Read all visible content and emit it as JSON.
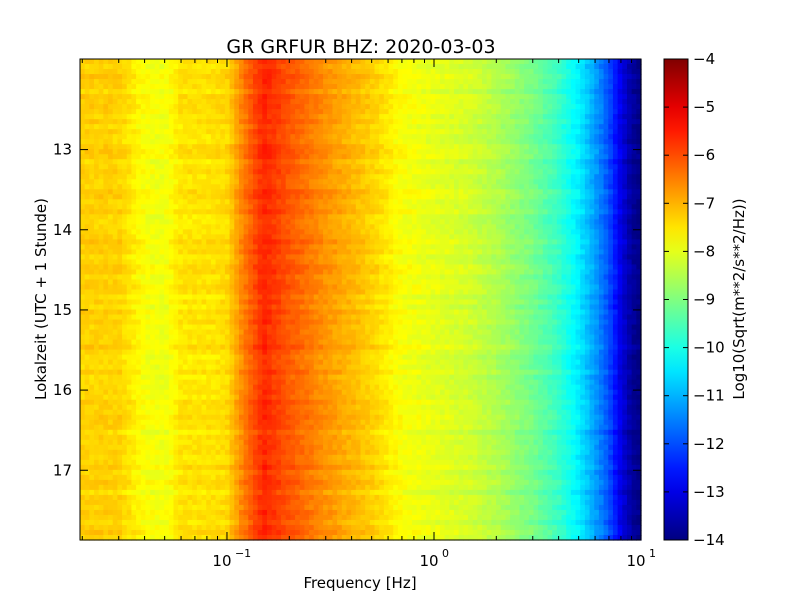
{
  "chart_data": {
    "type": "heatmap",
    "title": "GR GRFUR BHZ: 2020-03-03",
    "xlabel": "Frequency [Hz]",
    "ylabel": "Lokalzeit (UTC + 1 Stunde)",
    "colorbar_label": "Log10(Sqrt(m**2/s**2/Hz))",
    "x_scale": "log",
    "xlim": [
      0.0195,
      10
    ],
    "ylim": [
      17.87,
      11.87
    ],
    "y_inverted": true,
    "x_ticks": [
      {
        "value": 0.1,
        "base": "10",
        "exp": "−1"
      },
      {
        "value": 1,
        "base": "10",
        "exp": "0"
      },
      {
        "value": 10,
        "base": "10",
        "exp": "1"
      }
    ],
    "y_ticks": [
      {
        "value": 13,
        "label": "13"
      },
      {
        "value": 14,
        "label": "14"
      },
      {
        "value": 15,
        "label": "15"
      },
      {
        "value": 16,
        "label": "16"
      },
      {
        "value": 17,
        "label": "17"
      }
    ],
    "colorbar_range": [
      -14,
      -4
    ],
    "colorbar_ticks": [
      {
        "value": -4,
        "label": "−4"
      },
      {
        "value": -5,
        "label": "−5"
      },
      {
        "value": -6,
        "label": "−6"
      },
      {
        "value": -7,
        "label": "−7"
      },
      {
        "value": -8,
        "label": "−8"
      },
      {
        "value": -9,
        "label": "−9"
      },
      {
        "value": -10,
        "label": "−10"
      },
      {
        "value": -11,
        "label": "−11"
      },
      {
        "value": -12,
        "label": "−12"
      },
      {
        "value": -13,
        "label": "−13"
      },
      {
        "value": -14,
        "label": "−14"
      }
    ],
    "colormap": "jet",
    "spectrum_profile": [
      {
        "frequency": 0.02,
        "value": -7.3
      },
      {
        "frequency": 0.03,
        "value": -7.3
      },
      {
        "frequency": 0.04,
        "value": -7.8
      },
      {
        "frequency": 0.05,
        "value": -7.9
      },
      {
        "frequency": 0.06,
        "value": -7.5
      },
      {
        "frequency": 0.08,
        "value": -7.5
      },
      {
        "frequency": 0.1,
        "value": -7.4
      },
      {
        "frequency": 0.12,
        "value": -6.5
      },
      {
        "frequency": 0.15,
        "value": -5.6
      },
      {
        "frequency": 0.2,
        "value": -6.1
      },
      {
        "frequency": 0.3,
        "value": -6.7
      },
      {
        "frequency": 0.5,
        "value": -7.3
      },
      {
        "frequency": 0.7,
        "value": -7.8
      },
      {
        "frequency": 1.0,
        "value": -8.0
      },
      {
        "frequency": 1.5,
        "value": -8.2
      },
      {
        "frequency": 2.0,
        "value": -8.5
      },
      {
        "frequency": 3.0,
        "value": -9.1
      },
      {
        "frequency": 4.0,
        "value": -9.7
      },
      {
        "frequency": 5.0,
        "value": -10.4
      },
      {
        "frequency": 6.0,
        "value": -11.2
      },
      {
        "frequency": 7.0,
        "value": -12.0
      },
      {
        "frequency": 8.0,
        "value": -13.0
      },
      {
        "frequency": 9.0,
        "value": -13.7
      },
      {
        "frequency": 10.0,
        "value": -14.0
      }
    ]
  }
}
